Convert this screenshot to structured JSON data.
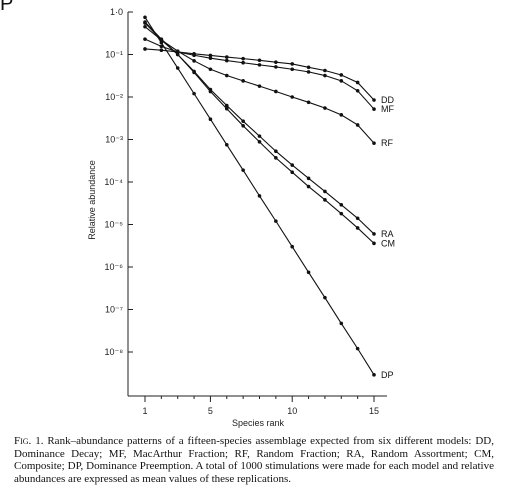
{
  "corner_mark": "P",
  "caption": {
    "label": "Fig. 1.",
    "text": "Rank–abundance patterns of a fifteen-species assemblage expected from six different models: DD, Dominance Decay; MF, MacArthur Fraction; RF, Random Fraction; RA, Random Assortment; CM, Composite; DP, Dominance Preemption. A total of 1000 stimulations were made for each model and relative abundances are expressed as mean values of these replications."
  },
  "chart_data": {
    "type": "line",
    "xlabel": "Species rank",
    "ylabel": "Relative abundance",
    "yscale": "log",
    "xlim": [
      1,
      15
    ],
    "ylim": [
      1e-09,
      1
    ],
    "x_ticks": [
      1,
      5,
      10,
      15
    ],
    "x_tick_labels": [
      "1",
      "5",
      "10",
      "15"
    ],
    "y_ticks": [
      1,
      0.1,
      0.01,
      0.001,
      0.0001,
      1e-05,
      1e-06,
      1e-07,
      1e-08
    ],
    "y_tick_labels": [
      "1·0",
      "10⁻¹",
      "10⁻²",
      "10⁻³",
      "10⁻⁴",
      "10⁻⁵",
      "10⁻⁶",
      "10⁻⁷",
      "10⁻⁸"
    ],
    "grid": false,
    "x": [
      1,
      2,
      3,
      4,
      5,
      6,
      7,
      8,
      9,
      10,
      11,
      12,
      13,
      14,
      15
    ],
    "series": [
      {
        "name": "DD",
        "values": [
          0.135,
          0.126,
          0.115,
          0.104,
          0.095,
          0.087,
          0.08,
          0.073,
          0.066,
          0.06,
          0.05,
          0.042,
          0.033,
          0.022,
          0.0085
        ]
      },
      {
        "name": "MF",
        "values": [
          0.23,
          0.155,
          0.115,
          0.096,
          0.082,
          0.072,
          0.064,
          0.057,
          0.051,
          0.045,
          0.039,
          0.032,
          0.024,
          0.014,
          0.0052
        ]
      },
      {
        "name": "RF",
        "values": [
          0.45,
          0.22,
          0.12,
          0.071,
          0.045,
          0.032,
          0.024,
          0.018,
          0.0135,
          0.01,
          0.0075,
          0.0055,
          0.0038,
          0.0022,
          0.00082
        ]
      },
      {
        "name": "RA",
        "values": [
          0.55,
          0.22,
          0.1,
          0.04,
          0.015,
          0.0063,
          0.0027,
          0.0012,
          0.00053,
          0.00025,
          0.000122,
          6e-05,
          2.9e-05,
          1.4e-05,
          6e-06
        ]
      },
      {
        "name": "CM",
        "values": [
          0.58,
          0.23,
          0.1,
          0.038,
          0.0135,
          0.0053,
          0.0021,
          0.00088,
          0.00037,
          0.00017,
          7.8e-05,
          3.8e-05,
          1.8e-05,
          8.3e-06,
          3.6e-06
        ]
      },
      {
        "name": "DP",
        "values": [
          0.75,
          0.19,
          0.048,
          0.012,
          0.003,
          0.00075,
          0.00019,
          4.7e-05,
          1.2e-05,
          3e-06,
          7.5e-07,
          1.9e-07,
          4.7e-08,
          1.2e-08,
          2.9e-09
        ]
      }
    ],
    "colors": {
      "line": "#111111",
      "axis": "#222222"
    }
  }
}
